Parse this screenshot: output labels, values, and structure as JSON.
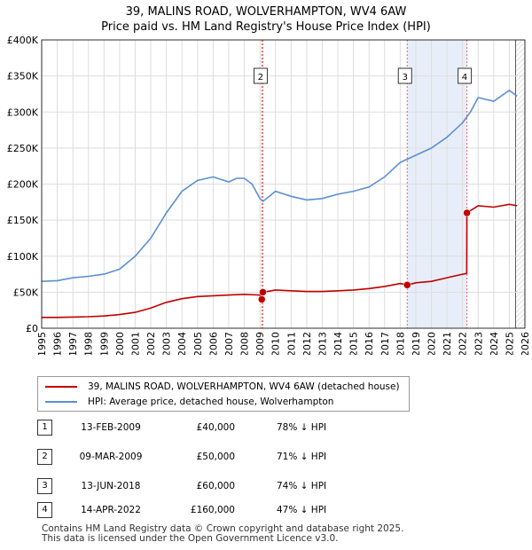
{
  "title_line1": "39, MALINS ROAD, WOLVERHAMPTON, WV4 6AW",
  "title_line2": "Price paid vs. HM Land Registry's House Price Index (HPI)",
  "chart_data": {
    "type": "line",
    "title": "39, MALINS ROAD, WOLVERHAMPTON, WV4 6AW — Price paid vs. HM Land Registry's House Price Index (HPI)",
    "xlim": [
      1995,
      2026
    ],
    "ylim": [
      0,
      400000
    ],
    "x_ticks": [
      1995,
      1996,
      1997,
      1998,
      1999,
      2000,
      2001,
      2002,
      2003,
      2004,
      2005,
      2006,
      2007,
      2008,
      2009,
      2010,
      2011,
      2012,
      2013,
      2014,
      2015,
      2016,
      2017,
      2018,
      2019,
      2020,
      2021,
      2022,
      2023,
      2024,
      2025,
      2026
    ],
    "y_ticks": [
      {
        "value": 0,
        "label": "£0"
      },
      {
        "value": 50000,
        "label": "£50K"
      },
      {
        "value": 100000,
        "label": "£100K"
      },
      {
        "value": 150000,
        "label": "£150K"
      },
      {
        "value": 200000,
        "label": "£200K"
      },
      {
        "value": 250000,
        "label": "£250K"
      },
      {
        "value": 300000,
        "label": "£300K"
      },
      {
        "value": 350000,
        "label": "£350K"
      },
      {
        "value": 400000,
        "label": "£400K"
      }
    ],
    "grid": true,
    "series": [
      {
        "name": "HPI: Average price, detached house, Wolverhampton",
        "color": "#5b8fd0",
        "x": [
          1995.0,
          1996.0,
          1997.0,
          1998.0,
          1999.0,
          2000.0,
          2001.0,
          2002.0,
          2003.0,
          2004.0,
          2005.0,
          2006.0,
          2007.0,
          2007.5,
          2008.0,
          2008.5,
          2009.0,
          2009.2,
          2010.0,
          2011.0,
          2012.0,
          2013.0,
          2014.0,
          2015.0,
          2016.0,
          2017.0,
          2018.0,
          2019.0,
          2020.0,
          2021.0,
          2022.0,
          2022.5,
          2023.0,
          2024.0,
          2025.0,
          2025.5
        ],
        "values": [
          65000,
          66000,
          70000,
          72000,
          75000,
          82000,
          100000,
          125000,
          160000,
          190000,
          205000,
          210000,
          203000,
          208000,
          208000,
          200000,
          180000,
          176000,
          190000,
          183000,
          178000,
          180000,
          186000,
          190000,
          196000,
          210000,
          230000,
          240000,
          250000,
          265000,
          285000,
          300000,
          320000,
          315000,
          330000,
          322000
        ]
      },
      {
        "name": "39, MALINS ROAD, WOLVERHAMPTON, WV4 6AW (detached house)",
        "color": "#c00000",
        "x": [
          1995.0,
          1996.0,
          1997.0,
          1998.0,
          1999.0,
          2000.0,
          2001.0,
          2002.0,
          2003.0,
          2004.0,
          2005.0,
          2006.0,
          2007.0,
          2008.0,
          2009.0,
          2009.12,
          2009.19,
          2010.0,
          2011.0,
          2012.0,
          2013.0,
          2014.0,
          2015.0,
          2016.0,
          2017.0,
          2018.0,
          2018.45,
          2019.0,
          2020.0,
          2021.0,
          2022.0,
          2022.27,
          2022.28,
          2023.0,
          2024.0,
          2025.0,
          2025.5
        ],
        "values": [
          15000,
          15000,
          15500,
          16000,
          17000,
          19000,
          22000,
          28000,
          36000,
          41000,
          44000,
          45000,
          46000,
          47000,
          46000,
          40000,
          50000,
          53000,
          52000,
          51000,
          51000,
          52000,
          53000,
          55000,
          58000,
          62000,
          60000,
          63000,
          65000,
          70000,
          75000,
          76000,
          160000,
          170000,
          168000,
          172000,
          170000
        ]
      }
    ],
    "transactions": [
      {
        "num": "1",
        "date": "13-FEB-2009",
        "x": 2009.12,
        "price": 40000,
        "price_label": "£40,000",
        "hpi": "78% ↓ HPI"
      },
      {
        "num": "2",
        "date": "09-MAR-2009",
        "x": 2009.19,
        "price": 50000,
        "price_label": "£50,000",
        "hpi": "71% ↓ HPI"
      },
      {
        "num": "3",
        "date": "13-JUN-2018",
        "x": 2018.45,
        "price": 60000,
        "price_label": "£60,000",
        "hpi": "74% ↓ HPI"
      },
      {
        "num": "4",
        "date": "14-APR-2022",
        "x": 2022.28,
        "price": 160000,
        "price_label": "£160,000",
        "hpi": "47% ↓ HPI"
      }
    ],
    "shaded_span": [
      2018.45,
      2022.28
    ],
    "chart_label_markers": [
      "2",
      "3",
      "4"
    ]
  },
  "legend": {
    "items": [
      {
        "label": "39, MALINS ROAD, WOLVERHAMPTON, WV4 6AW (detached house)",
        "color": "#c00000"
      },
      {
        "label": "HPI: Average price, detached house, Wolverhampton",
        "color": "#5b8fd0"
      }
    ]
  },
  "footer": {
    "line1": "Contains HM Land Registry data © Crown copyright and database right 2025.",
    "line2": "This data is licensed under the Open Government Licence v3.0."
  }
}
